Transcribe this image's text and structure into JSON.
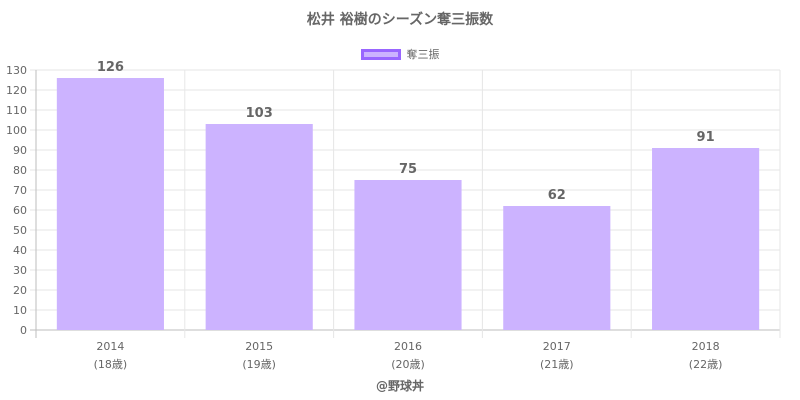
{
  "chart_data": {
    "type": "bar",
    "title": "松井 裕樹のシーズン奪三振数",
    "categories": [
      "2014",
      "2015",
      "2016",
      "2017",
      "2018"
    ],
    "category_sublabels": [
      "(18歳)",
      "(19歳)",
      "(20歳)",
      "(21歳)",
      "(22歳)"
    ],
    "series": [
      {
        "name": "奪三振",
        "values": [
          126,
          103,
          75,
          62,
          91
        ]
      }
    ],
    "ylim": [
      0,
      130
    ],
    "ytick_step": 10,
    "grid": true,
    "legend_position": "top-center",
    "bar_fill": "#ccb3ff",
    "bar_border": "#9966ff",
    "credit": "@野球丼"
  }
}
